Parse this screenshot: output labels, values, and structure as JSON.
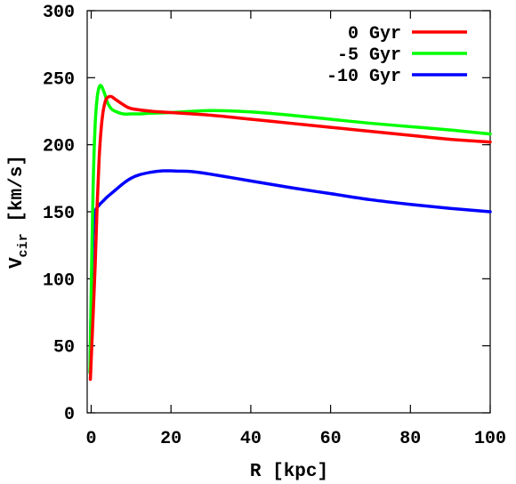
{
  "chart_data": {
    "type": "line",
    "title": "",
    "xlabel": "R [kpc]",
    "ylabel_main": "V",
    "ylabel_sub": "cir",
    "ylabel_rest": " [km/s]",
    "xlim": [
      -1,
      100
    ],
    "ylim": [
      0,
      300
    ],
    "xticks": [
      0,
      20,
      40,
      60,
      80,
      100
    ],
    "xtick_labels": [
      "0",
      "20",
      "40",
      "60",
      "80",
      "100"
    ],
    "yticks": [
      0,
      50,
      100,
      150,
      200,
      250,
      300
    ],
    "ytick_labels": [
      "0",
      "50",
      "100",
      "150",
      "200",
      "250",
      "300"
    ],
    "grid": false,
    "legend_position": "top-right",
    "series": [
      {
        "name": "0 Gyr",
        "color": "#ff0000",
        "x": [
          -0.2,
          0.3,
          1,
          1.5,
          2,
          2.5,
          3,
          3.5,
          4,
          5,
          6,
          8,
          10,
          15,
          20,
          30,
          40,
          50,
          60,
          70,
          80,
          90,
          100
        ],
        "y": [
          25,
          60,
          110,
          155,
          190,
          212,
          225,
          232,
          235,
          236,
          234,
          230,
          227,
          225,
          224,
          222,
          219,
          216,
          213,
          210,
          207,
          204,
          202
        ]
      },
      {
        "name": "-5 Gyr",
        "color": "#00ff00",
        "x": [
          -0.3,
          0,
          0.5,
          1,
          1.5,
          2,
          2.5,
          3,
          3.5,
          4,
          5,
          6,
          8,
          10,
          12,
          15,
          20,
          30,
          40,
          50,
          60,
          70,
          80,
          90,
          100
        ],
        "y": [
          30,
          90,
          170,
          215,
          235,
          243,
          244,
          241,
          237,
          232,
          227,
          225,
          223,
          223,
          223,
          223.5,
          224,
          225.5,
          224.5,
          222,
          219,
          216,
          213.5,
          211,
          208
        ]
      },
      {
        "name": "-10 Gyr",
        "color": "#0000ff",
        "x": [
          -0.3,
          0,
          0.5,
          1,
          2,
          3,
          4,
          6,
          8,
          10,
          12,
          15,
          18,
          20,
          22,
          25,
          30,
          40,
          50,
          60,
          70,
          80,
          90,
          100
        ],
        "y": [
          30,
          80,
          135,
          150,
          155,
          158,
          161,
          166,
          171,
          175,
          177.5,
          179.5,
          180.5,
          180.5,
          180.3,
          180,
          178,
          173,
          168,
          163.5,
          159,
          155.5,
          152.5,
          150
        ]
      }
    ]
  }
}
